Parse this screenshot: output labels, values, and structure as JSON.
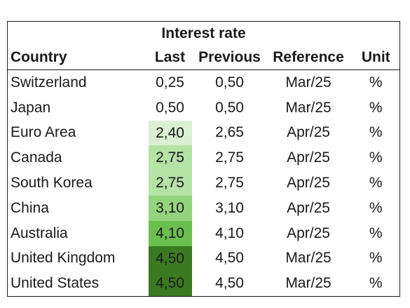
{
  "table": {
    "title": "Interest rate",
    "columns": {
      "country": "Country",
      "last": "Last",
      "previous": "Previous",
      "reference": "Reference",
      "unit": "Unit"
    },
    "rows": [
      {
        "country": "Switzerland",
        "last": "0,25",
        "previous": "0,50",
        "reference": "Mar/25",
        "unit": "%",
        "shade": "#ffffff"
      },
      {
        "country": "Japan",
        "last": "0,50",
        "previous": "0,50",
        "reference": "Mar/25",
        "unit": "%",
        "shade": "#ffffff"
      },
      {
        "country": "Euro Area",
        "last": "2,40",
        "previous": "2,65",
        "reference": "Apr/25",
        "unit": "%",
        "shade": "#d9f0d3"
      },
      {
        "country": "Canada",
        "last": "2,75",
        "previous": "2,75",
        "reference": "Apr/25",
        "unit": "%",
        "shade": "#b5e2a5"
      },
      {
        "country": "South Korea",
        "last": "2,75",
        "previous": "2,75",
        "reference": "Apr/25",
        "unit": "%",
        "shade": "#b5e2a5"
      },
      {
        "country": "China",
        "last": "3,10",
        "previous": "3,10",
        "reference": "Apr/25",
        "unit": "%",
        "shade": "#94d47e"
      },
      {
        "country": "Australia",
        "last": "4,10",
        "previous": "4,10",
        "reference": "Apr/25",
        "unit": "%",
        "shade": "#6cbf4f"
      },
      {
        "country": "United Kingdom",
        "last": "4,50",
        "previous": "4,50",
        "reference": "Mar/25",
        "unit": "%",
        "shade": "#3a7a22"
      },
      {
        "country": "United States",
        "last": "4,50",
        "previous": "4,50",
        "reference": "Mar/25",
        "unit": "%",
        "shade": "#3a7a22"
      }
    ]
  }
}
